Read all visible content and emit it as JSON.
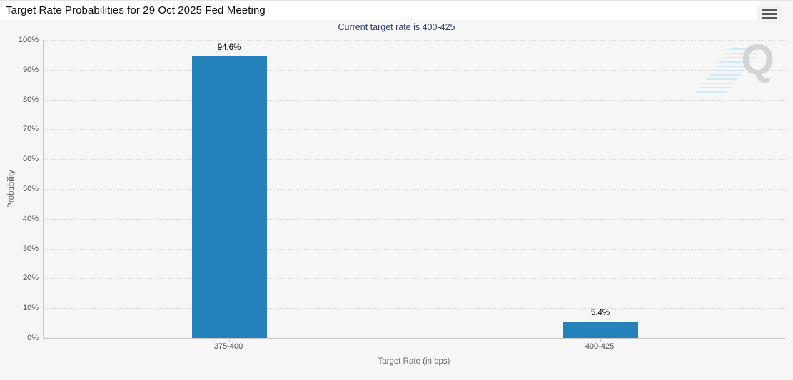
{
  "header": {
    "title": "Target Rate Probabilities for 29 Oct 2025 Fed Meeting"
  },
  "toolbar": {
    "menu_icon": "hamburger-icon"
  },
  "watermark": {
    "letter": "Q"
  },
  "chart_data": {
    "type": "bar",
    "title": "Target Rate Probabilities for 29 Oct 2025 Fed Meeting",
    "subtitle": "Current target rate is 400-425",
    "categories": [
      "375-400",
      "400-425"
    ],
    "values": [
      94.6,
      5.4
    ],
    "data_labels": [
      "94.6%",
      "5.4%"
    ],
    "xlabel": "Target Rate (in bps)",
    "ylabel": "Probability",
    "ylim": [
      0,
      100
    ],
    "yticks": [
      0,
      10,
      20,
      30,
      40,
      50,
      60,
      70,
      80,
      90,
      100
    ],
    "ytick_suffix": "%",
    "grid": "horizontal-dotted",
    "legend": "none",
    "bar_color": "#2581b9",
    "subtitle_color": "#2a3f6e",
    "axis_color": "#c9c9c9"
  }
}
